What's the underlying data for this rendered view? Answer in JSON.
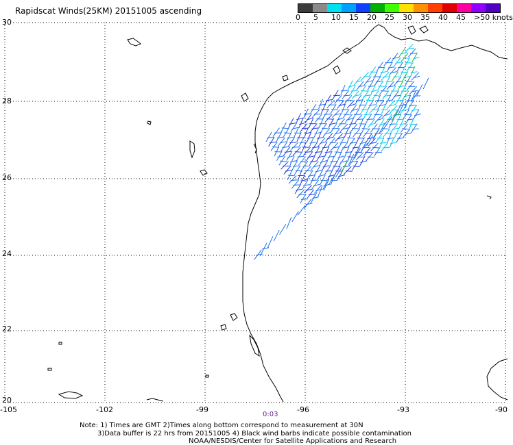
{
  "title": "Rapidscat Winds(25KM) 20151005 ascending",
  "legend": {
    "labels": [
      "0",
      "5",
      "10",
      "15",
      "20",
      "25",
      "30",
      "35",
      "40",
      "45",
      ">50 knots"
    ],
    "colors": [
      "#3c3c3c",
      "#8a8a8a",
      "#00e0f0",
      "#00a0ff",
      "#1040ff",
      "#00b000",
      "#40ff00",
      "#ffe000",
      "#ff9000",
      "#ff4000",
      "#e00000",
      "#ff00a0",
      "#9000ff",
      "#5000c0"
    ]
  },
  "axes": {
    "lat_labels": [
      "30",
      "28",
      "26",
      "24",
      "22",
      "20"
    ],
    "lon_labels": [
      "-105",
      "-102",
      "-99",
      "-96",
      "-93",
      "-90"
    ]
  },
  "time_label": "0:03",
  "notes": [
    "Note: 1) Times are GMT 2)Times along bottom correspond to measurement at 30N",
    "3)Data buffer is 22 hrs from 20151005 4) Black wind barbs indicate possible contamination",
    "NOAA/NESDIS/Center for Satellite Applications and Research"
  ]
}
